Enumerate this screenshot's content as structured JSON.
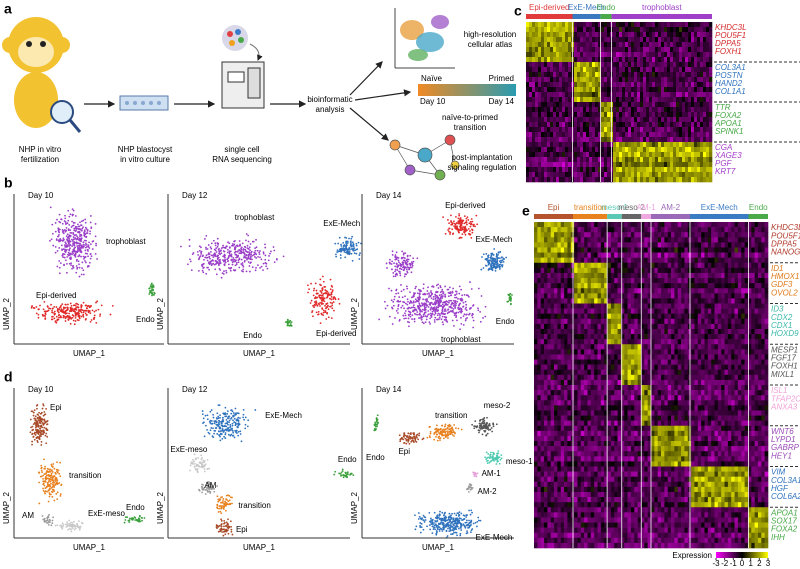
{
  "panel_a": {
    "label": "a",
    "steps": [
      {
        "lines": [
          "NHP in vitro",
          "fertilization"
        ]
      },
      {
        "lines": [
          "NHP blastocyst",
          "in vitro culture"
        ]
      },
      {
        "lines": [
          "single cell",
          "RNA sequencing"
        ]
      },
      {
        "lines": [
          "bioinformatic",
          "analysis"
        ]
      }
    ],
    "outputs": [
      {
        "lines": [
          "high-resolution",
          "cellular atlas"
        ]
      },
      {
        "lines": [
          "naïve-to-primed",
          "transition"
        ]
      },
      {
        "lines": [
          "post-implantation",
          "signaling regulation"
        ]
      }
    ],
    "gradient": {
      "start": "Naïve",
      "end": "Primed",
      "start_day": "Day 10",
      "end_day": "Day 14"
    }
  },
  "panel_b": {
    "label": "b",
    "x_label": "UMAP_1",
    "y_label": "UMAP_2",
    "plots": [
      {
        "title": "Day 10",
        "labels": [
          "trophoblast",
          "Epi-derived",
          "Endo"
        ]
      },
      {
        "title": "Day 12",
        "labels": [
          "trophoblast",
          "ExE-Mech",
          "Endo",
          "Epi-derived"
        ]
      },
      {
        "title": "Day 14",
        "labels": [
          "Epi-derived",
          "ExE-Mech",
          "Endo",
          "trophoblast"
        ]
      }
    ]
  },
  "panel_c": {
    "label": "c",
    "groups": [
      {
        "name": "Epi-derived",
        "color": "#e03a3a"
      },
      {
        "name": "ExE-Mech",
        "color": "#3a78c0"
      },
      {
        "name": "Endo",
        "color": "#4aaa4a"
      },
      {
        "name": "trophoblast",
        "color": "#a040c8"
      }
    ],
    "gene_blocks": [
      {
        "color": "#d42a2a",
        "genes": [
          "KHDC3L",
          "POU5F1",
          "DPPA5",
          "FOXH1"
        ]
      },
      {
        "color": "#2f72bd",
        "genes": [
          "COL3A1",
          "POSTN",
          "HAND2",
          "COL1A1"
        ]
      },
      {
        "color": "#45a845",
        "genes": [
          "TTR",
          "FOXA2",
          "APOA1",
          "SPINK1"
        ]
      },
      {
        "color": "#a23cc8",
        "genes": [
          "CGA",
          "XAGE3",
          "PGF",
          "KRT7"
        ]
      }
    ]
  },
  "panel_d": {
    "label": "d",
    "x_label": "UMAP_1",
    "y_label": "UMAP_2",
    "plots": [
      {
        "title": "Day 10",
        "labels": [
          "Epi",
          "transition",
          "AM",
          "ExE-meso",
          "Endo"
        ]
      },
      {
        "title": "Day 12",
        "labels": [
          "ExE-Mech",
          "ExE-meso",
          "AM",
          "transition",
          "Epi",
          "Endo"
        ]
      },
      {
        "title": "Day 14",
        "labels": [
          "meso-2",
          "transition",
          "Epi",
          "Endo",
          "meso-1",
          "AM-1",
          "AM-2",
          "ExE-Mech"
        ]
      }
    ]
  },
  "panel_e": {
    "label": "e",
    "groups": [
      {
        "name": "Epi",
        "color": "#b5532c"
      },
      {
        "name": "transition",
        "color": "#e8821e"
      },
      {
        "name": "meso-1",
        "color": "#5ac8b4"
      },
      {
        "name": "meso-2",
        "color": "#666666"
      },
      {
        "name": "AM-1",
        "color": "#f0a8e0"
      },
      {
        "name": "AM-2",
        "color": "#9a6ab8"
      },
      {
        "name": "ExE-Mech",
        "color": "#3a7cc4"
      },
      {
        "name": "Endo",
        "color": "#4aaa4a"
      }
    ],
    "gene_blocks": [
      {
        "color": "#b03a2a",
        "genes": [
          "KHDC3L",
          "POU5F1",
          "DPPA5",
          "NANOG"
        ]
      },
      {
        "color": "#e07a18",
        "genes": [
          "ID1",
          "HMOX1",
          "GDF3",
          "OVOL2"
        ]
      },
      {
        "color": "#3ab8a8",
        "genes": [
          "ID3",
          "CDX2",
          "CDX1",
          "HOXD9"
        ]
      },
      {
        "color": "#555555",
        "genes": [
          "MESP1",
          "FGF17",
          "FOXH1",
          "MIXL1"
        ]
      },
      {
        "color": "#f0a0d8",
        "genes": [
          "ISL1",
          "TFAP2C",
          "ANXA3"
        ]
      },
      {
        "color": "#9a4ab8",
        "genes": [
          "WNT6",
          "LYPD1",
          "GABRP",
          "HEY1"
        ]
      },
      {
        "color": "#2f72bd",
        "genes": [
          "VIM",
          "COL3A1",
          "HGF",
          "COL6A2"
        ]
      },
      {
        "color": "#45a845",
        "genes": [
          "APOA1",
          "SOX17",
          "FOXA2",
          "IHH"
        ]
      }
    ],
    "legend": {
      "title": "Expression",
      "ticks": [
        -3,
        -2,
        -1,
        0,
        1,
        2,
        3
      ]
    }
  }
}
